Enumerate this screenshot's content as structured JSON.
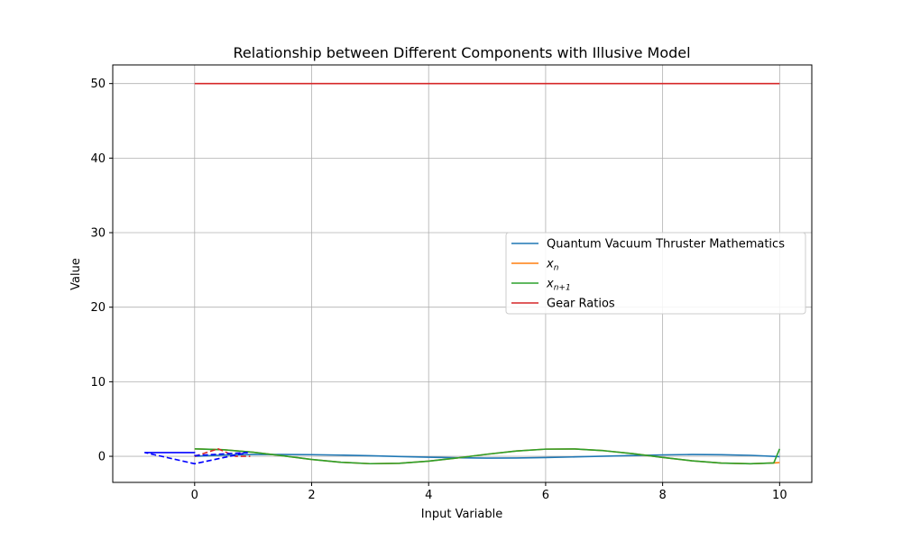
{
  "chart_data": {
    "type": "line",
    "title": "Relationship between Different Components with Illusive Model",
    "xlabel": "Input Variable",
    "ylabel": "Value",
    "xlim": [
      -1.4,
      10.55
    ],
    "ylim": [
      -3.5,
      52.5
    ],
    "xticks": [
      0,
      2,
      4,
      6,
      8,
      10
    ],
    "yticks": [
      0,
      10,
      20,
      30,
      40,
      50
    ],
    "grid": true,
    "legend_position": "center-right",
    "series": [
      {
        "name": "Quantum Vacuum Thruster Mathematics",
        "color": "#1f77b4",
        "style": "solid",
        "x": [
          0,
          0.5,
          1,
          1.5,
          2,
          2.5,
          3,
          3.5,
          4,
          4.5,
          5,
          5.5,
          6,
          6.5,
          7,
          7.5,
          8,
          8.5,
          9,
          9.5,
          10
        ],
        "y": [
          0.0,
          0.17,
          0.24,
          0.24,
          0.22,
          0.16,
          0.07,
          -0.03,
          -0.12,
          -0.2,
          -0.24,
          -0.23,
          -0.17,
          -0.08,
          0.02,
          0.11,
          0.19,
          0.24,
          0.21,
          0.13,
          -0.05
        ]
      },
      {
        "name": "x_n",
        "name_base": "x",
        "name_sub": "n",
        "color": "#ff7f0e",
        "style": "solid",
        "x": [
          0,
          0.5,
          1,
          1.5,
          2,
          2.5,
          3,
          3.5,
          4,
          4.5,
          5,
          5.5,
          6,
          6.5,
          7,
          7.5,
          8,
          8.5,
          9,
          9.5,
          9.9,
          10
        ],
        "y": [
          1.0,
          0.88,
          0.54,
          0.07,
          -0.42,
          -0.8,
          -0.99,
          -0.94,
          -0.65,
          -0.21,
          0.28,
          0.71,
          0.96,
          0.98,
          0.75,
          0.35,
          -0.15,
          -0.6,
          -0.91,
          -1.0,
          -0.89,
          -0.84
        ]
      },
      {
        "name": "x_{n+1}",
        "name_base": "x",
        "name_sub": "n+1",
        "color": "#2ca02c",
        "style": "solid",
        "x": [
          0,
          0.5,
          1,
          1.5,
          2,
          2.5,
          3,
          3.5,
          4,
          4.5,
          5,
          5.5,
          6,
          6.5,
          7,
          7.5,
          8,
          8.5,
          9,
          9.5,
          9.9,
          10
        ],
        "y": [
          1.0,
          0.88,
          0.54,
          0.07,
          -0.42,
          -0.8,
          -0.99,
          -0.94,
          -0.65,
          -0.21,
          0.28,
          0.71,
          0.96,
          0.98,
          0.75,
          0.35,
          -0.15,
          -0.6,
          -0.91,
          -1.0,
          -0.89,
          1.0
        ]
      },
      {
        "name": "Gear Ratios",
        "color": "#d62728",
        "style": "solid",
        "x": [
          0,
          10
        ],
        "y": [
          50,
          50
        ]
      },
      {
        "name": "",
        "color": "#d62728",
        "style": "dashed",
        "x": [
          0,
          0.4,
          0.55,
          0.7,
          0.95
        ],
        "y": [
          0,
          1.0,
          0.5,
          0.0,
          0.0
        ]
      },
      {
        "name": "",
        "color": "#0000ff",
        "style": "dashed",
        "x": [
          -0.85,
          0.0,
          -0.85,
          0.0,
          0.9,
          0.0,
          0.0
        ],
        "y": [
          0.5,
          0.5,
          0.5,
          -1.0,
          0.5,
          0.1,
          0.0
        ]
      }
    ],
    "legend": [
      "Quantum Vacuum Thruster Mathematics",
      "x_n",
      "x_{n+1}",
      "Gear Ratios"
    ]
  }
}
